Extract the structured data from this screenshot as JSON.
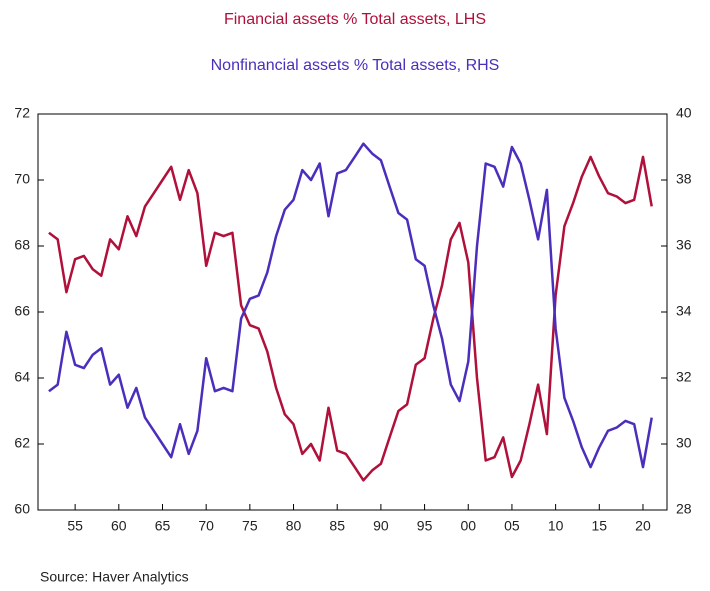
{
  "chart_data": {
    "type": "line",
    "title": "Financial assets % Total assets, LHS",
    "subtitle": "Nonfinancial assets % Total assets, RHS",
    "source": "Source:  Haver Analytics",
    "x": [
      1952,
      1953,
      1954,
      1955,
      1956,
      1957,
      1958,
      1959,
      1960,
      1961,
      1962,
      1963,
      1964,
      1965,
      1966,
      1967,
      1968,
      1969,
      1970,
      1971,
      1972,
      1973,
      1974,
      1975,
      1976,
      1977,
      1978,
      1979,
      1980,
      1981,
      1982,
      1983,
      1984,
      1985,
      1986,
      1987,
      1988,
      1989,
      1990,
      1991,
      1992,
      1993,
      1994,
      1995,
      1996,
      1997,
      1998,
      1999,
      2000,
      2001,
      2002,
      2003,
      2004,
      2005,
      2006,
      2007,
      2008,
      2009,
      2010,
      2011,
      2012,
      2013,
      2014,
      2015,
      2016,
      2017,
      2018,
      2019,
      2020,
      2021
    ],
    "series": [
      {
        "name": "Financial assets % Total assets, LHS",
        "color": "#b0103a",
        "axis": "y",
        "values": [
          68.4,
          68.2,
          66.6,
          67.6,
          67.7,
          67.3,
          67.1,
          68.2,
          67.9,
          68.9,
          68.3,
          69.2,
          69.6,
          70.0,
          70.4,
          69.4,
          70.3,
          69.6,
          67.4,
          68.4,
          68.3,
          68.4,
          66.2,
          65.6,
          65.5,
          64.8,
          63.7,
          62.9,
          62.6,
          61.7,
          62.0,
          61.5,
          63.1,
          61.8,
          61.7,
          61.3,
          60.9,
          61.2,
          61.4,
          62.2,
          63.0,
          63.2,
          64.4,
          64.6,
          65.8,
          66.8,
          68.2,
          68.7,
          67.5,
          64.0,
          61.5,
          61.6,
          62.2,
          61.0,
          61.5,
          62.6,
          63.8,
          62.3,
          66.5,
          68.6,
          69.3,
          70.1,
          70.7,
          70.1,
          69.6,
          69.5,
          69.3,
          69.4,
          70.7,
          69.2
        ]
      },
      {
        "name": "Nonfinancial assets % Total assets, RHS",
        "color": "#4b2ebc",
        "axis": "y2",
        "values": [
          31.6,
          31.8,
          33.4,
          32.4,
          32.3,
          32.7,
          32.9,
          31.8,
          32.1,
          31.1,
          31.7,
          30.8,
          30.4,
          30.0,
          29.6,
          30.6,
          29.7,
          30.4,
          32.6,
          31.6,
          31.7,
          31.6,
          33.8,
          34.4,
          34.5,
          35.2,
          36.3,
          37.1,
          37.4,
          38.3,
          38.0,
          38.5,
          36.9,
          38.2,
          38.3,
          38.7,
          39.1,
          38.8,
          38.6,
          37.8,
          37.0,
          36.8,
          35.6,
          35.4,
          34.2,
          33.2,
          31.8,
          31.3,
          32.5,
          36.0,
          38.5,
          38.4,
          37.8,
          39.0,
          38.5,
          37.4,
          36.2,
          37.7,
          33.5,
          31.4,
          30.7,
          29.9,
          29.3,
          29.9,
          30.4,
          30.5,
          30.7,
          30.6,
          29.3,
          30.8
        ]
      }
    ],
    "xlim": [
      1950.75,
      2022.75
    ],
    "xticks": [
      {
        "value": 1955,
        "label": "55"
      },
      {
        "value": 1960,
        "label": "60"
      },
      {
        "value": 1965,
        "label": "65"
      },
      {
        "value": 1970,
        "label": "70"
      },
      {
        "value": 1975,
        "label": "75"
      },
      {
        "value": 1980,
        "label": "80"
      },
      {
        "value": 1985,
        "label": "85"
      },
      {
        "value": 1990,
        "label": "90"
      },
      {
        "value": 1995,
        "label": "95"
      },
      {
        "value": 2000,
        "label": "00"
      },
      {
        "value": 2005,
        "label": "05"
      },
      {
        "value": 2010,
        "label": "10"
      },
      {
        "value": 2015,
        "label": "15"
      },
      {
        "value": 2020,
        "label": "20"
      }
    ],
    "ylim": [
      60,
      72
    ],
    "yticks": [
      60,
      62,
      64,
      66,
      68,
      70,
      72
    ],
    "y2lim": [
      28,
      40
    ],
    "y2ticks": [
      28,
      30,
      32,
      34,
      36,
      38,
      40
    ]
  }
}
